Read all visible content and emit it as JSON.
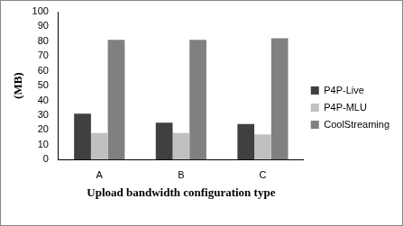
{
  "chart_data": {
    "type": "bar",
    "categories": [
      "A",
      "B",
      "C"
    ],
    "series": [
      {
        "name": "P4P-Live",
        "color": "#404040",
        "values": [
          31,
          25,
          24
        ]
      },
      {
        "name": "P4P-MLU",
        "color": "#c0c0c0",
        "values": [
          18,
          18,
          17
        ]
      },
      {
        "name": "CoolStreaming",
        "color": "#808080",
        "values": [
          81,
          81,
          82
        ]
      }
    ],
    "x_label": "Upload bandwidth configuration type",
    "y_label": "(MB)",
    "ylim": [
      0,
      100
    ],
    "yticks": [
      0,
      10,
      20,
      30,
      40,
      50,
      60,
      70,
      80,
      90,
      100
    ],
    "grid": false,
    "legend": "right"
  }
}
